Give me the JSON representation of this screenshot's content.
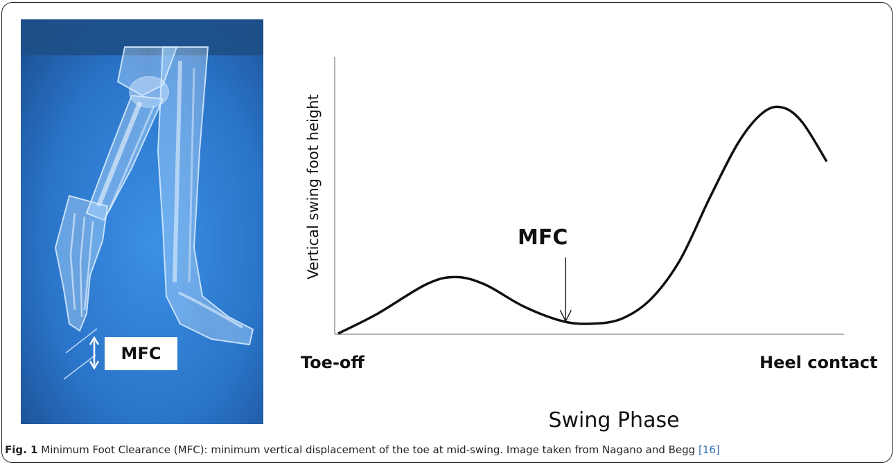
{
  "figure": {
    "illustration": {
      "description_icon": "leg-skeleton-illustration",
      "label": "MFC",
      "colors": {
        "bg_top": "#1d4f86",
        "bg": "#2b7bd2",
        "bone": "#cfe6ff"
      }
    },
    "chart_data": {
      "type": "line",
      "title": "",
      "ylabel": "Vertical swing foot height",
      "xlabel": "Swing Phase",
      "x_tick_labels": [
        "Toe-off",
        "Heel contact"
      ],
      "xlim": [
        0,
        100
      ],
      "ylim": [
        0,
        100
      ],
      "series": [
        {
          "x": [
            0,
            8,
            18,
            24,
            30,
            38,
            46,
            52,
            58,
            64,
            70,
            76,
            82,
            87,
            91,
            95,
            100
          ],
          "y": [
            0,
            8,
            20,
            23,
            20,
            11,
            5,
            4,
            6,
            14,
            30,
            55,
            78,
            90,
            92,
            86,
            70
          ]
        }
      ],
      "annotation": {
        "text": "MFC",
        "x": 46,
        "y": 5
      },
      "color": "#111111"
    },
    "caption": {
      "label": "Fig. 1",
      "text": " Minimum Foot Clearance (MFC): minimum vertical displacement of the toe at mid-swing. Image taken from Nagano and Begg ",
      "ref": "[16]"
    }
  }
}
